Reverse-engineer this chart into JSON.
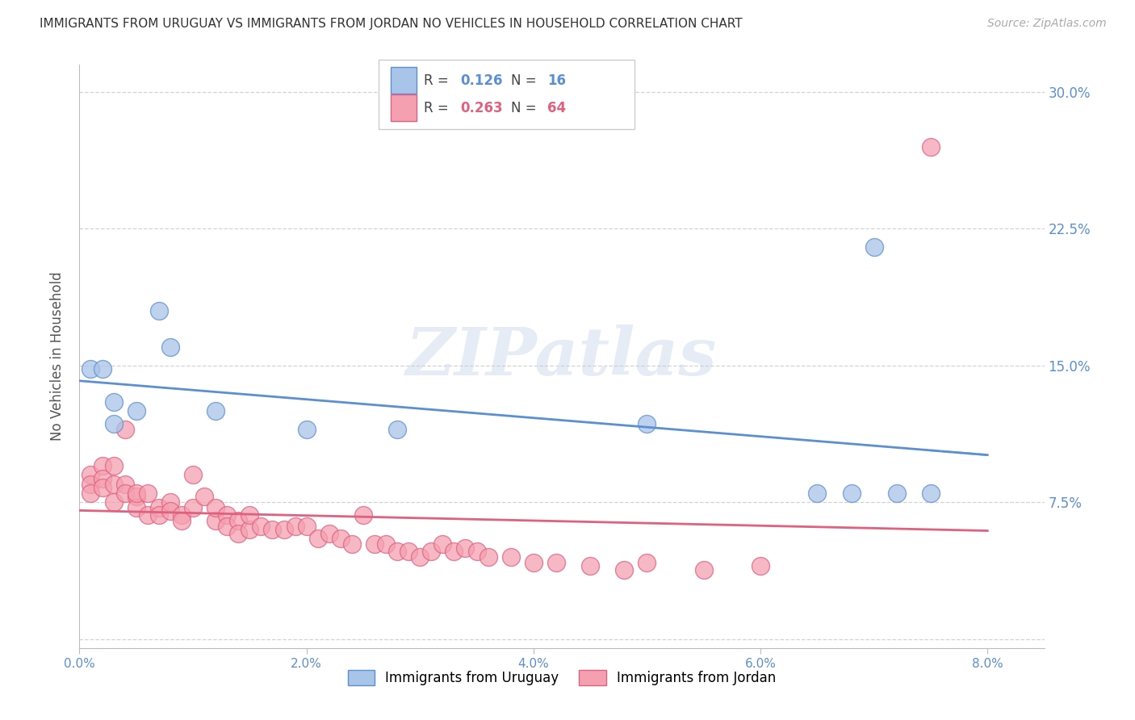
{
  "title": "IMMIGRANTS FROM URUGUAY VS IMMIGRANTS FROM JORDAN NO VEHICLES IN HOUSEHOLD CORRELATION CHART",
  "source": "Source: ZipAtlas.com",
  "ylabel": "No Vehicles in Household",
  "x_tick_labels": [
    "0.0%",
    "2.0%",
    "4.0%",
    "6.0%",
    "8.0%"
  ],
  "x_ticks": [
    0.0,
    0.02,
    0.04,
    0.06,
    0.08
  ],
  "y_ticks": [
    0.0,
    0.075,
    0.15,
    0.225,
    0.3
  ],
  "y_tick_labels": [
    "",
    "7.5%",
    "15.0%",
    "22.5%",
    "30.0%"
  ],
  "xlim": [
    0.0,
    0.085
  ],
  "ylim": [
    -0.005,
    0.315
  ],
  "uruguay_color": "#a8c4e8",
  "jordan_color": "#f4a0b0",
  "uruguay_edge": "#5b8fd4",
  "jordan_edge": "#e06080",
  "R_uruguay": 0.126,
  "N_uruguay": 16,
  "R_jordan": 0.263,
  "N_jordan": 64,
  "uruguay_x": [
    0.001,
    0.002,
    0.003,
    0.003,
    0.005,
    0.007,
    0.008,
    0.012,
    0.02,
    0.028,
    0.05,
    0.065,
    0.068,
    0.07,
    0.072,
    0.075
  ],
  "uruguay_y": [
    0.148,
    0.148,
    0.118,
    0.13,
    0.125,
    0.18,
    0.16,
    0.125,
    0.115,
    0.115,
    0.118,
    0.08,
    0.08,
    0.215,
    0.08,
    0.08
  ],
  "jordan_x": [
    0.001,
    0.001,
    0.001,
    0.002,
    0.002,
    0.002,
    0.003,
    0.003,
    0.003,
    0.004,
    0.004,
    0.004,
    0.005,
    0.005,
    0.005,
    0.006,
    0.006,
    0.007,
    0.007,
    0.008,
    0.008,
    0.009,
    0.009,
    0.01,
    0.01,
    0.011,
    0.012,
    0.012,
    0.013,
    0.013,
    0.014,
    0.014,
    0.015,
    0.015,
    0.016,
    0.017,
    0.018,
    0.019,
    0.02,
    0.021,
    0.022,
    0.023,
    0.024,
    0.025,
    0.026,
    0.027,
    0.028,
    0.029,
    0.03,
    0.031,
    0.032,
    0.033,
    0.034,
    0.035,
    0.036,
    0.038,
    0.04,
    0.042,
    0.045,
    0.048,
    0.05,
    0.055,
    0.06,
    0.075
  ],
  "jordan_y": [
    0.09,
    0.085,
    0.08,
    0.095,
    0.088,
    0.083,
    0.085,
    0.075,
    0.095,
    0.085,
    0.08,
    0.115,
    0.078,
    0.072,
    0.08,
    0.068,
    0.08,
    0.072,
    0.068,
    0.075,
    0.07,
    0.068,
    0.065,
    0.09,
    0.072,
    0.078,
    0.065,
    0.072,
    0.068,
    0.062,
    0.065,
    0.058,
    0.06,
    0.068,
    0.062,
    0.06,
    0.06,
    0.062,
    0.062,
    0.055,
    0.058,
    0.055,
    0.052,
    0.068,
    0.052,
    0.052,
    0.048,
    0.048,
    0.045,
    0.048,
    0.052,
    0.048,
    0.05,
    0.048,
    0.045,
    0.045,
    0.042,
    0.042,
    0.04,
    0.038,
    0.042,
    0.038,
    0.04,
    0.27
  ],
  "watermark_text": "ZIPatlas",
  "background_color": "#ffffff",
  "grid_color": "#c8c8c8",
  "axis_color": "#5b8fd4",
  "title_color": "#333333"
}
